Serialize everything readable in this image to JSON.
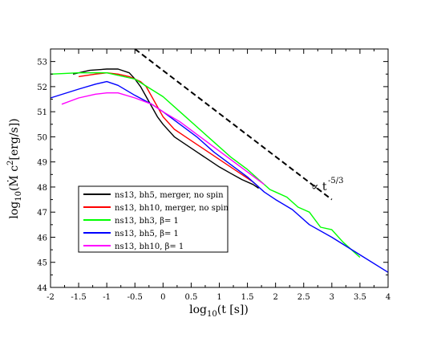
{
  "chart_data": {
    "type": "line",
    "xlabel": "log10(t [s])",
    "ylabel": "log10(Ṁ c² [erg/s])",
    "xlim": [
      -2,
      4
    ],
    "ylim": [
      44,
      53.5
    ],
    "x_ticks": [
      "-2",
      "-1.5",
      "-1",
      "-0.5",
      "0",
      "0.5",
      "1",
      "1.5",
      "2",
      "2.5",
      "3",
      "3.5",
      "4"
    ],
    "y_ticks": [
      "44",
      "45",
      "46",
      "47",
      "48",
      "49",
      "50",
      "51",
      "52",
      "53"
    ],
    "grid": false,
    "legend_position": "lower-left",
    "series": [
      {
        "name": "ns13, bh5, merger, no spin",
        "color": "#000000",
        "x": [
          -1.6,
          -1.3,
          -1.0,
          -0.8,
          -0.6,
          -0.5,
          -0.4,
          -0.3,
          -0.2,
          -0.1,
          0.0,
          0.2,
          0.4,
          0.6,
          0.8,
          1.0,
          1.2,
          1.4,
          1.6,
          1.7
        ],
        "y": [
          52.5,
          52.65,
          52.7,
          52.7,
          52.55,
          52.3,
          52.0,
          51.6,
          51.2,
          50.8,
          50.5,
          50.0,
          49.7,
          49.4,
          49.1,
          48.8,
          48.55,
          48.3,
          48.1,
          47.95
        ]
      },
      {
        "name": "ns13, bh10, merger, no spin",
        "color": "#ff0000",
        "x": [
          -1.5,
          -1.2,
          -1.0,
          -0.8,
          -0.6,
          -0.4,
          -0.3,
          -0.2,
          -0.1,
          0.0,
          0.2,
          0.4,
          0.6,
          0.8,
          1.0,
          1.2,
          1.4,
          1.6,
          1.7
        ],
        "y": [
          52.4,
          52.5,
          52.55,
          52.5,
          52.4,
          52.2,
          52.0,
          51.6,
          51.2,
          50.8,
          50.3,
          50.0,
          49.7,
          49.4,
          49.1,
          48.8,
          48.5,
          48.2,
          48.0
        ]
      },
      {
        "name": "ns13,   bh3, β= 1",
        "color": "#00ff00",
        "x": [
          -2.0,
          -1.5,
          -1.0,
          -0.5,
          0.0,
          0.3,
          0.6,
          0.9,
          1.2,
          1.5,
          1.7,
          1.9,
          2.0,
          2.2,
          2.4,
          2.6,
          2.8,
          3.0,
          3.2,
          3.5
        ],
        "y": [
          52.5,
          52.55,
          52.55,
          52.3,
          51.6,
          51.0,
          50.4,
          49.8,
          49.2,
          48.7,
          48.3,
          47.9,
          47.8,
          47.6,
          47.2,
          47.0,
          46.4,
          46.3,
          45.8,
          45.2
        ]
      },
      {
        "name": "ns13,   bh5, β= 1",
        "color": "#0000ff",
        "x": [
          -2.0,
          -1.5,
          -1.2,
          -1.0,
          -0.8,
          -0.5,
          -0.2,
          0.0,
          0.3,
          0.6,
          0.9,
          1.2,
          1.5,
          1.8,
          2.0,
          2.3,
          2.6,
          3.0,
          3.5,
          4.0
        ],
        "y": [
          51.55,
          51.9,
          52.1,
          52.2,
          52.05,
          51.65,
          51.3,
          51.0,
          50.5,
          50.0,
          49.4,
          48.9,
          48.4,
          47.8,
          47.5,
          47.1,
          46.5,
          46.0,
          45.3,
          44.6
        ]
      },
      {
        "name": "ns13, bh10, β= 1",
        "color": "#ff00ff",
        "x": [
          -1.8,
          -1.5,
          -1.2,
          -1.0,
          -0.8,
          -0.5,
          -0.2,
          0.0,
          0.3,
          0.6,
          0.9,
          1.2,
          1.5,
          1.8
        ],
        "y": [
          51.3,
          51.55,
          51.7,
          51.75,
          51.75,
          51.55,
          51.3,
          51.0,
          50.6,
          50.1,
          49.6,
          49.1,
          48.6,
          48.1
        ]
      }
    ],
    "reference_line": {
      "x": [
        -0.5,
        3.0
      ],
      "y": [
        53.5,
        47.5
      ],
      "style": "dashed",
      "color": "#000000"
    },
    "annotation": "∝ t^-5/3"
  }
}
